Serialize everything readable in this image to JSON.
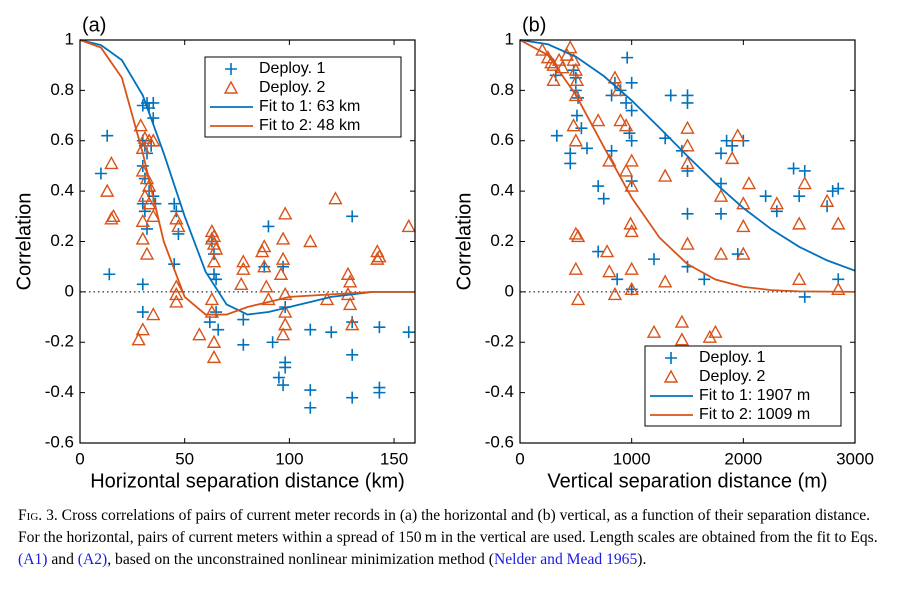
{
  "chart_data": [
    {
      "type": "scatter",
      "panel_label": "(a)",
      "xlabel": "Horizontal separation distance (km)",
      "ylabel": "Correlation",
      "xlim": [
        0,
        160
      ],
      "xticks": [
        0,
        50,
        100,
        150
      ],
      "ylim": [
        -0.6,
        1
      ],
      "yticks": [
        -0.6,
        -0.4,
        -0.2,
        0,
        0.2,
        0.4,
        0.6,
        0.8,
        1
      ],
      "zero_line": true,
      "legend": "upper right",
      "series": [
        {
          "name": "Deploy. 1",
          "color": "#0072bd",
          "marker": "plus",
          "x": [
            10,
            13,
            14,
            30,
            32,
            33,
            35,
            35,
            30,
            31,
            32,
            34,
            30,
            31,
            33,
            30,
            31,
            35,
            36,
            32,
            30,
            30,
            45,
            46,
            47,
            45,
            63,
            64,
            64,
            65,
            65,
            62,
            66,
            78,
            78,
            88,
            90,
            92,
            95,
            97,
            98,
            98,
            97,
            98,
            110,
            110,
            110,
            120,
            130,
            130,
            130,
            130,
            143,
            143,
            143,
            157
          ],
          "values": [
            0.47,
            0.62,
            0.07,
            0.74,
            0.75,
            0.73,
            0.75,
            0.69,
            0.6,
            0.58,
            0.55,
            0.58,
            0.5,
            0.45,
            0.4,
            0.35,
            0.32,
            0.38,
            0.35,
            0.25,
            0.03,
            -0.08,
            0.35,
            0.32,
            0.23,
            0.11,
            0.2,
            0.15,
            0.07,
            0.05,
            -0.08,
            -0.12,
            -0.15,
            -0.11,
            -0.21,
            0.1,
            0.26,
            -0.2,
            -0.34,
            -0.37,
            -0.3,
            -0.28,
            0.1,
            -0.06,
            -0.15,
            -0.39,
            -0.46,
            -0.16,
            0.3,
            -0.12,
            -0.25,
            -0.42,
            -0.14,
            -0.38,
            -0.4,
            -0.16
          ]
        },
        {
          "name": "Deploy. 2",
          "color": "#d95319",
          "marker": "triangle",
          "x": [
            13,
            15,
            16,
            15,
            29,
            31,
            30,
            33,
            35,
            30,
            32,
            33,
            31,
            33,
            35,
            30,
            30,
            32,
            28,
            30,
            35,
            46,
            47,
            46,
            46,
            46,
            57,
            63,
            64,
            63,
            64,
            65,
            64,
            63,
            63,
            64,
            64,
            78,
            78,
            77,
            87,
            88,
            88,
            89,
            90,
            98,
            97,
            97,
            96,
            98,
            98,
            98,
            97,
            110,
            118,
            122,
            128,
            129,
            128,
            129,
            130,
            142,
            143,
            142,
            157
          ],
          "values": [
            0.4,
            0.51,
            0.3,
            0.29,
            0.66,
            0.61,
            0.57,
            0.6,
            0.6,
            0.48,
            0.45,
            0.42,
            0.38,
            0.35,
            0.3,
            0.28,
            0.21,
            0.15,
            -0.19,
            -0.15,
            -0.09,
            0.29,
            0.26,
            0.02,
            -0.01,
            -0.04,
            -0.17,
            0.24,
            0.22,
            0.21,
            0.19,
            0.17,
            0.12,
            -0.03,
            -0.08,
            -0.2,
            -0.26,
            0.12,
            0.09,
            0.03,
            0.16,
            0.18,
            0.1,
            0.02,
            -0.03,
            0.31,
            0.21,
            0.13,
            0.07,
            -0.01,
            -0.08,
            -0.13,
            -0.17,
            0.2,
            -0.03,
            0.37,
            0.07,
            0.04,
            -0.01,
            -0.05,
            -0.13,
            0.16,
            0.14,
            0.13,
            0.26
          ]
        },
        {
          "name": "Fit to 1: 63 km",
          "color": "#0072bd",
          "marker": "line",
          "x": [
            0,
            10,
            20,
            30,
            40,
            50,
            60,
            70,
            80,
            90,
            100,
            110,
            120,
            130,
            140,
            160
          ],
          "values": [
            1,
            0.98,
            0.92,
            0.78,
            0.55,
            0.3,
            0.08,
            -0.05,
            -0.09,
            -0.08,
            -0.06,
            -0.04,
            -0.02,
            -0.01,
            0,
            0
          ]
        },
        {
          "name": "Fit to 2: 48 km",
          "color": "#d95319",
          "marker": "line",
          "x": [
            0,
            10,
            20,
            30,
            40,
            50,
            60,
            70,
            80,
            90,
            100,
            120,
            140,
            160
          ],
          "values": [
            1,
            0.97,
            0.85,
            0.55,
            0.2,
            -0.02,
            -0.09,
            -0.09,
            -0.06,
            -0.04,
            -0.02,
            -0.01,
            0,
            0
          ]
        }
      ]
    },
    {
      "type": "scatter",
      "panel_label": "(b)",
      "xlabel": "Vertical separation distance (m)",
      "ylabel": "Correlation",
      "xlim": [
        0,
        3000
      ],
      "xticks": [
        0,
        1000,
        2000,
        3000
      ],
      "ylim": [
        -0.6,
        1
      ],
      "yticks": [
        -0.6,
        -0.4,
        -0.2,
        0,
        0.2,
        0.4,
        0.6,
        0.8,
        1
      ],
      "zero_line": true,
      "legend": "lower right",
      "series": [
        {
          "name": "Deploy. 1",
          "color": "#0072bd",
          "marker": "plus",
          "x": [
            320,
            330,
            450,
            480,
            500,
            500,
            520,
            510,
            550,
            450,
            600,
            700,
            750,
            820,
            820,
            850,
            900,
            950,
            960,
            1000,
            1000,
            980,
            1000,
            1000,
            700,
            870,
            1000,
            1200,
            1300,
            1350,
            1450,
            1500,
            1500,
            1500,
            1500,
            1500,
            1650,
            1800,
            1800,
            1800,
            1850,
            1900,
            2000,
            1950,
            2200,
            2300,
            2450,
            2550,
            2500,
            2550,
            2750,
            2800,
            2850,
            2850
          ],
          "values": [
            0.86,
            0.62,
            0.51,
            0.88,
            0.85,
            0.8,
            0.77,
            0.7,
            0.65,
            0.55,
            0.57,
            0.42,
            0.37,
            0.78,
            0.56,
            0.83,
            0.8,
            0.75,
            0.93,
            0.83,
            0.72,
            0.63,
            0.6,
            0.44,
            0.16,
            0.05,
            0.01,
            0.13,
            0.61,
            0.78,
            0.56,
            0.78,
            0.75,
            0.48,
            0.31,
            0.1,
            0.05,
            0.55,
            0.43,
            0.31,
            0.6,
            0.58,
            0.6,
            0.15,
            0.38,
            0.32,
            0.49,
            0.48,
            0.38,
            -0.02,
            0.34,
            0.4,
            0.41,
            0.05
          ]
        },
        {
          "name": "Deploy. 2",
          "color": "#d95319",
          "marker": "triangle",
          "x": [
            200,
            250,
            280,
            300,
            300,
            350,
            380,
            420,
            450,
            480,
            500,
            510,
            500,
            480,
            500,
            500,
            520,
            500,
            520,
            700,
            800,
            850,
            800,
            850,
            780,
            880,
            900,
            950,
            950,
            1000,
            1000,
            990,
            1000,
            1000,
            1000,
            1300,
            1300,
            1200,
            1450,
            1450,
            1500,
            1500,
            1500,
            1500,
            1800,
            1800,
            1900,
            2000,
            2000,
            2000,
            1750,
            1700,
            1950,
            2050,
            2300,
            2500,
            2550,
            2500,
            2750,
            2850,
            2850
          ],
          "values": [
            0.96,
            0.93,
            0.91,
            0.9,
            0.84,
            0.92,
            0.89,
            0.94,
            0.97,
            0.92,
            0.88,
            0.84,
            0.78,
            0.66,
            0.6,
            0.23,
            0.22,
            0.09,
            -0.03,
            0.68,
            0.52,
            0.85,
            0.08,
            -0.01,
            0.16,
            0.8,
            0.68,
            0.66,
            0.48,
            0.52,
            0.42,
            0.27,
            0.24,
            0.09,
            0.01,
            0.46,
            0.04,
            -0.16,
            -0.12,
            -0.19,
            0.65,
            0.58,
            0.51,
            0.19,
            0.38,
            0.15,
            0.53,
            0.35,
            0.26,
            0.15,
            -0.16,
            -0.18,
            0.62,
            0.43,
            0.35,
            0.27,
            0.43,
            0.05,
            0.36,
            0.27,
            0.01
          ]
        },
        {
          "name": "Fit to 1: 1907 m",
          "color": "#0072bd",
          "marker": "line",
          "x": [
            0,
            250,
            500,
            750,
            1000,
            1250,
            1500,
            1750,
            2000,
            2250,
            2500,
            2750,
            3000
          ],
          "values": [
            1,
            0.983,
            0.934,
            0.857,
            0.76,
            0.651,
            0.539,
            0.431,
            0.333,
            0.249,
            0.179,
            0.125,
            0.084
          ]
        },
        {
          "name": "Fit to 2: 1009 m",
          "color": "#d95319",
          "marker": "line",
          "x": [
            0,
            250,
            500,
            750,
            1000,
            1250,
            1500,
            1750,
            2000,
            2250,
            2500,
            2750,
            3000
          ],
          "values": [
            1,
            0.94,
            0.782,
            0.576,
            0.374,
            0.215,
            0.11,
            0.049,
            0.02,
            0.007,
            0.002,
            0.001,
            0
          ]
        }
      ]
    }
  ],
  "caption": {
    "label": "Fig. 3.",
    "parts": [
      {
        "text": " Cross correlations of pairs of current meter records in (a) the horizontal and (b) vertical, as a function of their separation distance. For the horizontal, pairs of current meters within a spread of 150 m in the vertical are used. Length scales are obtained from the fit to Eqs. ",
        "link": false
      },
      {
        "text": "(A1)",
        "link": true
      },
      {
        "text": " and ",
        "link": false
      },
      {
        "text": "(A2)",
        "link": true
      },
      {
        "text": ", based on the unconstrained nonlinear minimization method (",
        "link": false
      },
      {
        "text": "Nelder and Mead 1965",
        "link": true
      },
      {
        "text": ").",
        "link": false
      }
    ]
  }
}
